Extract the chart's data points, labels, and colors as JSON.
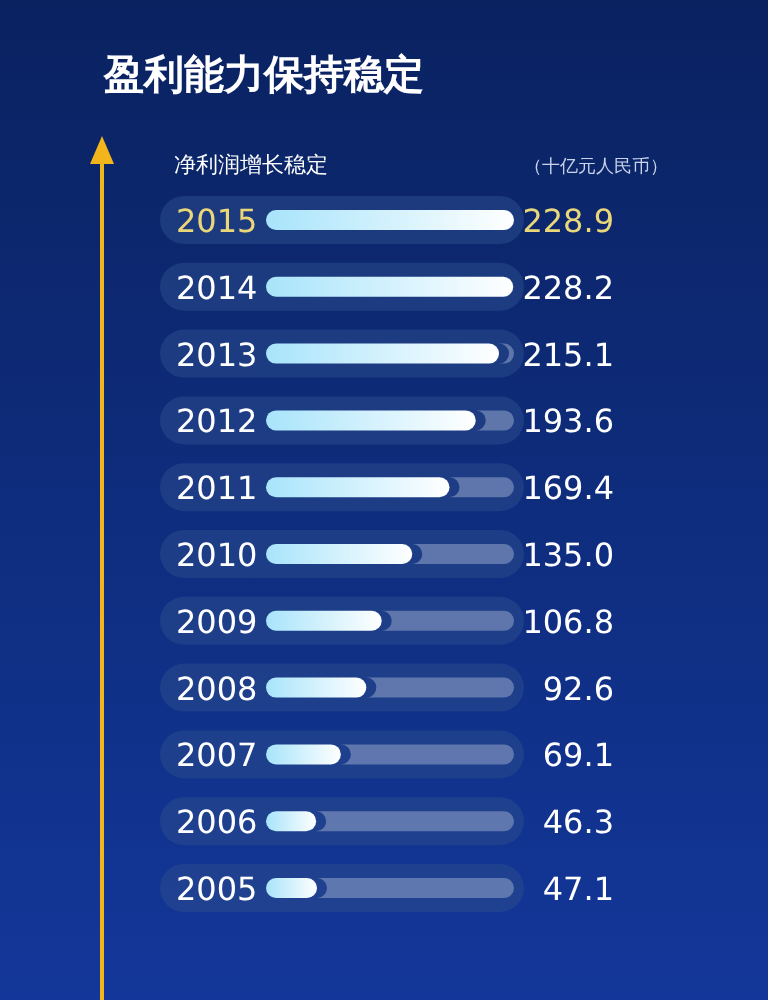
{
  "chart_data": {
    "type": "bar",
    "orientation": "horizontal",
    "title": "盈利能力保持稳定",
    "subtitle": "净利润增长稳定",
    "annotations": [
      "（十亿元人民币）"
    ],
    "categories": [
      "2015",
      "2014",
      "2013",
      "2012",
      "2011",
      "2010",
      "2009",
      "2008",
      "2007",
      "2006",
      "2005"
    ],
    "series": [
      {
        "color": "#a8e4fb",
        "values": [
          228.9,
          228.2,
          215.1,
          193.6,
          169.4,
          135.0,
          106.8,
          92.6,
          69.1,
          46.3,
          47.1
        ],
        "value_labels": [
          "228.9",
          "228.2",
          "215.1",
          "193.6",
          "169.4",
          "135.0",
          "106.8",
          "92.6",
          "69.1",
          "46.3",
          "47.1"
        ]
      }
    ]
  }
}
